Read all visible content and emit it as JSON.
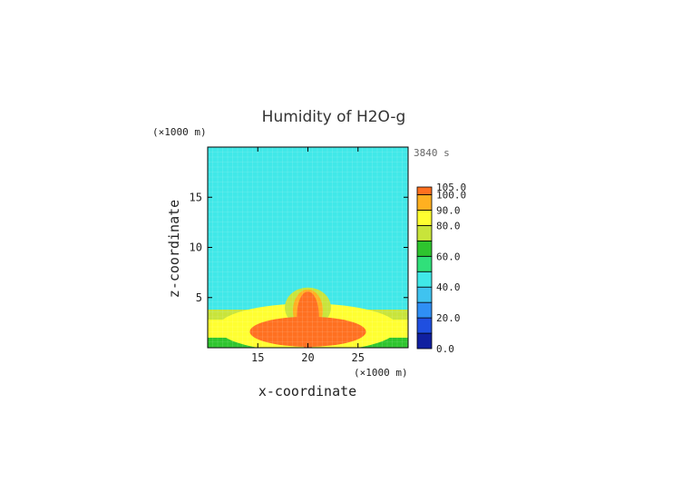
{
  "chart_data": {
    "type": "heatmap",
    "title": "Humidity of H2O-g",
    "time_label": "3840 s",
    "xlabel": "x-coordinate",
    "ylabel": "z-coordinate",
    "x_unit": "(×1000 m)",
    "y_unit": "(×1000 m)",
    "xlim": [
      10,
      30
    ],
    "ylim": [
      0,
      20
    ],
    "x_ticks": [
      "15",
      "20",
      "25"
    ],
    "y_ticks": [
      "5",
      "10",
      "15"
    ],
    "background_value": 40,
    "fields": [
      {
        "shape": "layer",
        "ztop": 3.8,
        "value": 70
      },
      {
        "shape": "layer",
        "ztop": 2.8,
        "value": 83
      },
      {
        "shape": "layer",
        "ztop": 1.0,
        "value": 68
      },
      {
        "shape": "layer",
        "ztop": 0.4,
        "value": 62
      },
      {
        "shape": "ellipse",
        "cx": 20,
        "cz": 2.0,
        "rx": 9.0,
        "rz": 2.4,
        "value": 82
      },
      {
        "shape": "ellipse",
        "cx": 20,
        "cz": 4.0,
        "rx": 2.3,
        "rz": 2.0,
        "value": 76
      },
      {
        "shape": "ellipse",
        "cx": 20,
        "cz": 3.7,
        "rx": 1.5,
        "rz": 2.1,
        "value": 90
      },
      {
        "shape": "ellipse",
        "cx": 20,
        "cz": 1.6,
        "rx": 5.8,
        "rz": 1.5,
        "value": 100
      },
      {
        "shape": "ellipse",
        "cx": 20,
        "cz": 3.2,
        "rx": 1.1,
        "rz": 2.4,
        "value": 100
      },
      {
        "shape": "ellipse",
        "cx": 20,
        "cz": 2.3,
        "rx": 0.8,
        "rz": 2.6,
        "value": 104
      }
    ],
    "colorbar": {
      "levels": [
        0,
        10,
        20,
        30,
        40,
        50,
        60,
        70,
        80,
        90,
        100,
        105
      ],
      "colors": [
        "#1020a0",
        "#1f4fe0",
        "#2f8ff5",
        "#3fc3f0",
        "#40e8e8",
        "#30e07a",
        "#2ec52e",
        "#c8e43a",
        "#ffff30",
        "#ffb020",
        "#ff7020",
        "#ff2a1e",
        "#ffffff"
      ],
      "tick_labels": [
        "105.0",
        "100.0",
        "90.0",
        "80.0",
        "60.0",
        "40.0",
        "20.0",
        "0.0"
      ]
    }
  }
}
